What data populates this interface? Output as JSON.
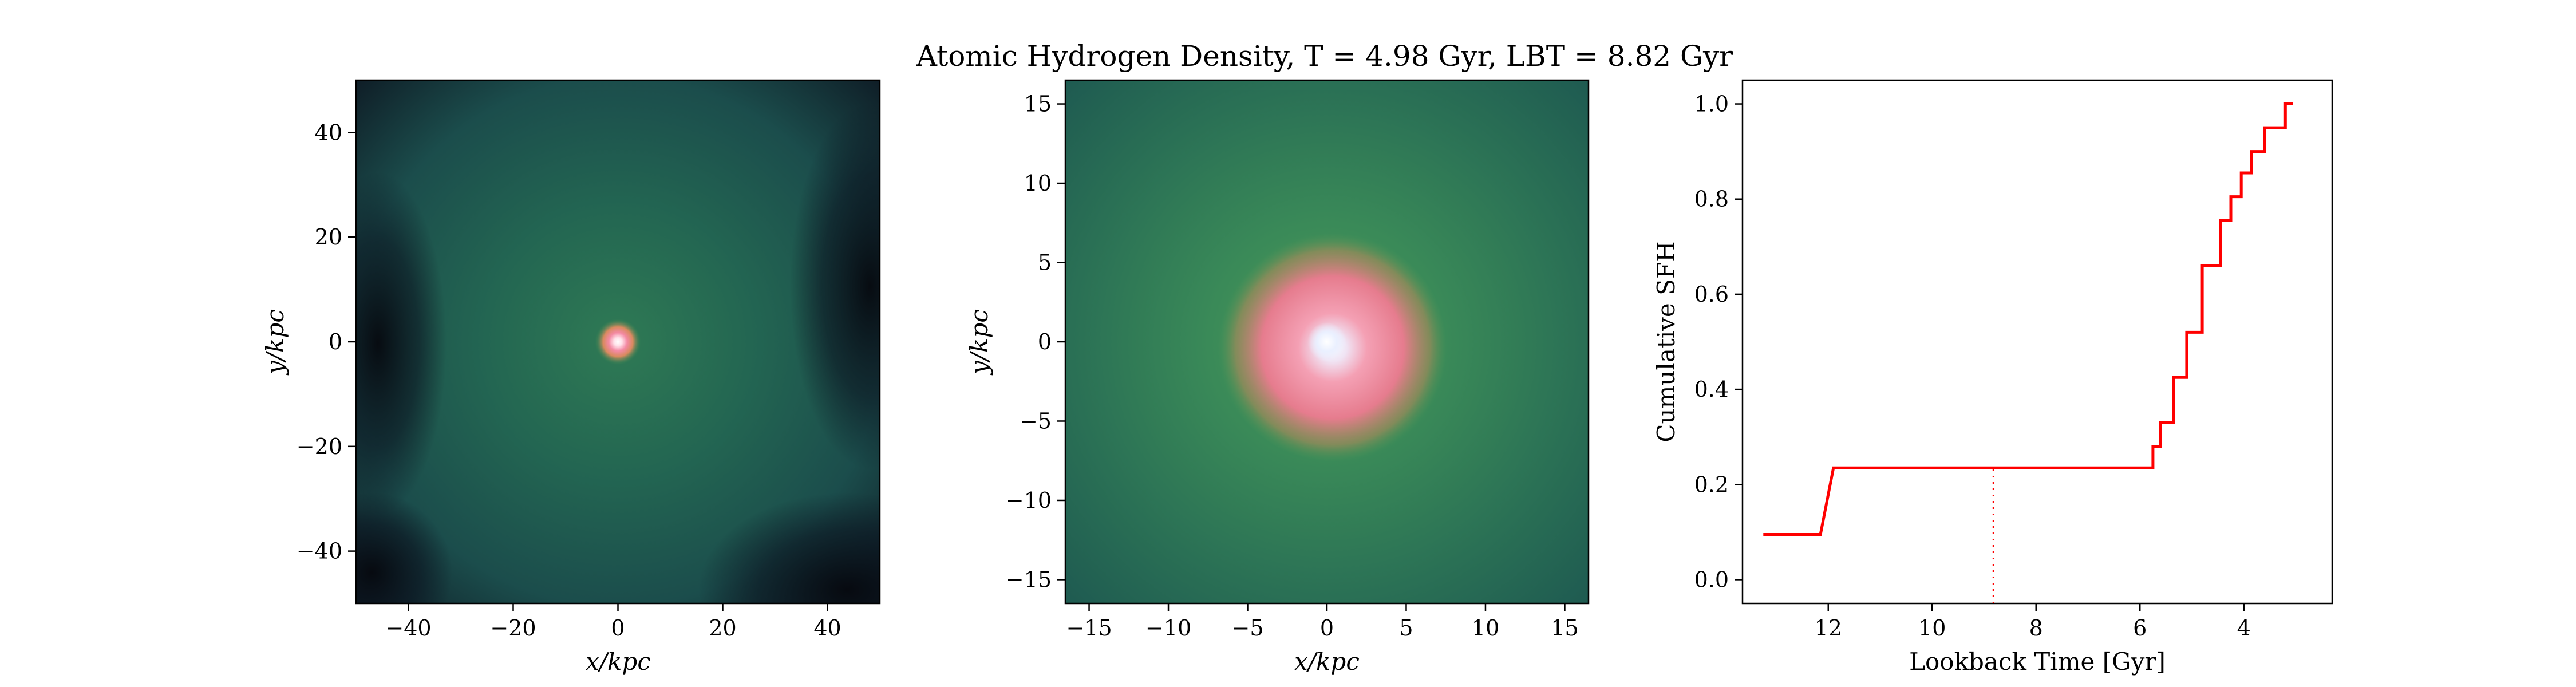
{
  "title": "Atomic Hydrogen Density, T = 4.98 Gyr, LBT = 8.82 Gyr",
  "colors": {
    "sfh_line": "#ff0000",
    "density_low": "#000000",
    "density_mid": "#1f5a50",
    "density_high": "#f48aa4",
    "density_peak": "#eaf0ff"
  },
  "chart_data": [
    {
      "type": "heatmap",
      "panel": "wide-view",
      "xlabel": "x/kpc",
      "ylabel": "y/kpc",
      "xlim": [
        -50,
        50
      ],
      "ylim": [
        -50,
        50
      ],
      "xticks": [
        -40,
        -20,
        0,
        20,
        40
      ],
      "yticks": [
        -40,
        -20,
        0,
        20,
        40
      ],
      "xtick_labels": [
        "−40",
        "−20",
        "0",
        "20",
        "40"
      ],
      "ytick_labels": [
        "−40",
        "−20",
        "0",
        "20",
        "40"
      ],
      "peak_at": [
        0,
        0
      ]
    },
    {
      "type": "heatmap",
      "panel": "zoom-view",
      "xlabel": "x/kpc",
      "ylabel": "y/kpc",
      "xlim": [
        -16.5,
        16.5
      ],
      "ylim": [
        -16.5,
        16.5
      ],
      "xticks": [
        -15,
        -10,
        -5,
        0,
        5,
        10,
        15
      ],
      "yticks": [
        -15,
        -10,
        -5,
        0,
        5,
        10,
        15
      ],
      "xtick_labels": [
        "−15",
        "−10",
        "−5",
        "0",
        "5",
        "10",
        "15"
      ],
      "ytick_labels": [
        "−15",
        "−10",
        "−5",
        "0",
        "5",
        "10",
        "15"
      ],
      "peak_at": [
        0,
        0
      ]
    },
    {
      "type": "line",
      "panel": "cumulative-sfh",
      "xlabel": "Lookback Time [Gyr]",
      "ylabel": "Cumulative SFH",
      "xlim": [
        13.65,
        2.3
      ],
      "ylim": [
        -0.05,
        1.05
      ],
      "x_inverted": true,
      "xticks": [
        12,
        10,
        8,
        6,
        4
      ],
      "yticks": [
        0.0,
        0.2,
        0.4,
        0.6,
        0.8,
        1.0
      ],
      "xtick_labels": [
        "12",
        "10",
        "8",
        "6",
        "4"
      ],
      "ytick_labels": [
        "0.0",
        "0.2",
        "0.4",
        "0.6",
        "0.8",
        "1.0"
      ],
      "series": [
        {
          "x": [
            13.25,
            12.15,
            11.9,
            5.85,
            5.75,
            5.75,
            5.6,
            5.6,
            5.35,
            5.35,
            5.1,
            5.1,
            4.8,
            4.8,
            4.65,
            4.65,
            4.55,
            4.55,
            4.45,
            4.45,
            4.25,
            4.25,
            4.05,
            4.05,
            3.85,
            3.85,
            3.6,
            3.6,
            3.4,
            3.4,
            3.2,
            3.2,
            3.05
          ],
          "y": [
            0.095,
            0.095,
            0.235,
            0.235,
            0.235,
            0.28,
            0.28,
            0.33,
            0.33,
            0.425,
            0.425,
            0.52,
            0.52,
            0.66,
            0.66,
            0.66,
            0.66,
            0.66,
            0.66,
            0.755,
            0.755,
            0.805,
            0.805,
            0.855,
            0.855,
            0.9,
            0.9,
            0.95,
            0.95,
            0.95,
            0.95,
            1.0,
            1.0
          ]
        }
      ],
      "marker_line": {
        "x": 8.82,
        "y_to": 0.235,
        "style": "dotted"
      },
      "grid": false,
      "legend": "none"
    }
  ]
}
